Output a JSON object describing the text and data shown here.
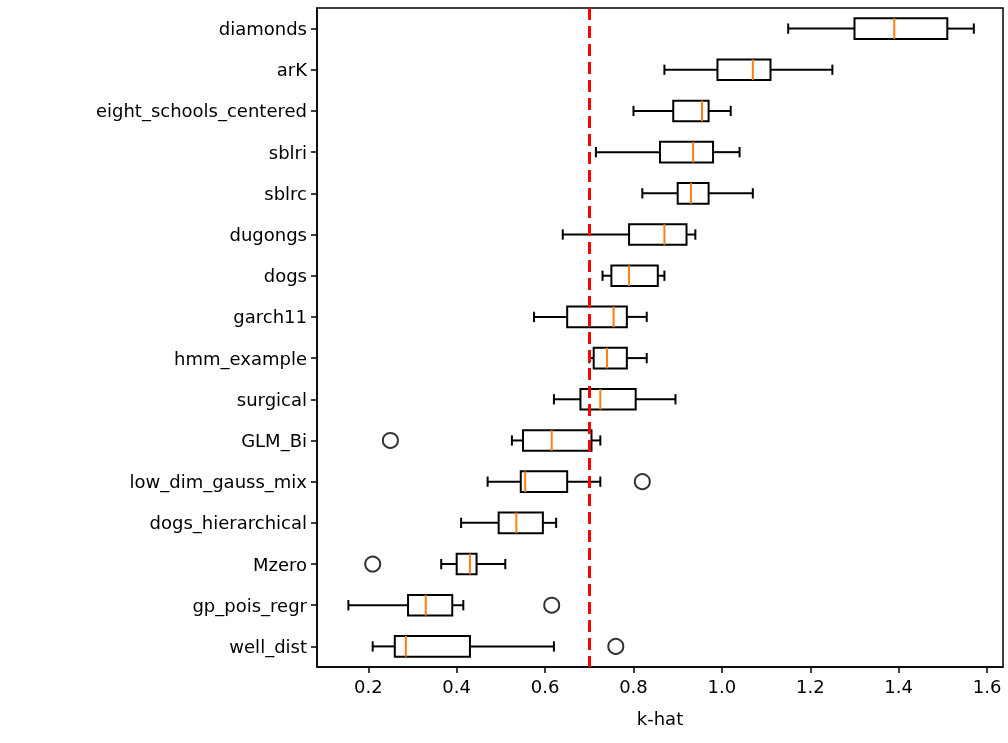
{
  "chart_data": {
    "type": "box",
    "xlabel": "k-hat",
    "orientation": "horizontal",
    "color": "#000000",
    "categories": [
      "diamonds",
      "arK",
      "eight_schools_centered",
      "sblri",
      "sblrc",
      "dugongs",
      "dogs",
      "garch11",
      "hmm_example",
      "surgical",
      "GLM_Bi",
      "low_dim_gauss_mix",
      "dogs_hierarchical",
      "Mzero",
      "gp_pois_regr",
      "well_dist"
    ],
    "boxes": [
      {
        "low": 1.15,
        "q1": 1.3,
        "median": 1.39,
        "q3": 1.51,
        "high": 1.57
      },
      {
        "low": 0.87,
        "q1": 0.99,
        "median": 1.07,
        "q3": 1.11,
        "high": 1.25
      },
      {
        "low": 0.8,
        "q1": 0.89,
        "median": 0.955,
        "q3": 0.97,
        "high": 1.02
      },
      {
        "low": 0.715,
        "q1": 0.86,
        "median": 0.935,
        "q3": 0.98,
        "high": 1.04
      },
      {
        "low": 0.82,
        "q1": 0.9,
        "median": 0.93,
        "q3": 0.97,
        "high": 1.07
      },
      {
        "low": 0.64,
        "q1": 0.79,
        "median": 0.87,
        "q3": 0.92,
        "high": 0.94
      },
      {
        "low": 0.73,
        "q1": 0.75,
        "median": 0.79,
        "q3": 0.855,
        "high": 0.87
      },
      {
        "low": 0.575,
        "q1": 0.65,
        "median": 0.755,
        "q3": 0.785,
        "high": 0.83
      },
      {
        "low": 0.7,
        "q1": 0.71,
        "median": 0.74,
        "q3": 0.785,
        "high": 0.83
      },
      {
        "low": 0.62,
        "q1": 0.68,
        "median": 0.725,
        "q3": 0.805,
        "high": 0.895
      },
      {
        "low": 0.525,
        "q1": 0.55,
        "median": 0.615,
        "q3": 0.705,
        "high": 0.725,
        "outliers": [
          0.25
        ]
      },
      {
        "low": 0.47,
        "q1": 0.545,
        "median": 0.555,
        "q3": 0.65,
        "high": 0.725,
        "outliers": [
          0.82
        ]
      },
      {
        "low": 0.41,
        "q1": 0.495,
        "median": 0.535,
        "q3": 0.595,
        "high": 0.625
      },
      {
        "low": 0.365,
        "q1": 0.4,
        "median": 0.43,
        "q3": 0.445,
        "high": 0.51,
        "outliers": [
          0.21
        ]
      },
      {
        "low": 0.155,
        "q1": 0.29,
        "median": 0.33,
        "q3": 0.39,
        "high": 0.415,
        "outliers": [
          0.615
        ]
      },
      {
        "low": 0.21,
        "q1": 0.26,
        "median": 0.285,
        "q3": 0.43,
        "high": 0.62,
        "outliers": [
          0.76
        ]
      }
    ],
    "xlim": [
      0.084,
      1.636
    ],
    "xticks": [
      0.2,
      0.4,
      0.6,
      0.8,
      {
        "value": 1,
        "label": "1.0"
      },
      1.2,
      1.4,
      1.6
    ],
    "ref_lines": [
      {
        "axis": "x",
        "value": 0.7,
        "color": "#ff0000",
        "line_style": "dashed"
      }
    ]
  }
}
